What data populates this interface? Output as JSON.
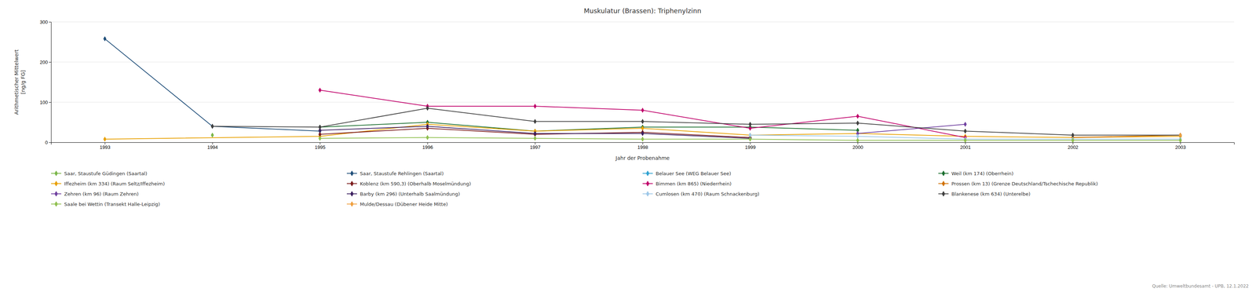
{
  "chart_data": {
    "type": "line",
    "title": "Muskulatur (Brassen): Triphenylzinn",
    "xlabel": "Jahr der Probenahme",
    "ylabel": "Arithmetischer Mittelwert\n[ng/g FG]",
    "xlim": [
      1992.5,
      2003.5
    ],
    "xticks": [
      1993,
      1994,
      1995,
      1996,
      1997,
      1998,
      1999,
      2000,
      2001,
      2002,
      2003
    ],
    "ylim": [
      0,
      300
    ],
    "yticks": [
      0,
      100,
      200,
      300
    ],
    "grid": "y",
    "legend": "bottom",
    "marker": "diamond",
    "line_style": "solid",
    "annotations": [
      "Quelle: Umweltbundesamt - UPB, 12.1.2022"
    ],
    "series": [
      {
        "name": "Saar, Staustufe Güdingen (Saartal)",
        "color": "#7ab648",
        "x": [
          1994
        ],
        "values": [
          18
        ]
      },
      {
        "name": "Saar, Staustufe Rehlingen (Saartal)",
        "color": "#1f4e79",
        "x": [
          1993,
          1994,
          1995
        ],
        "values": [
          258,
          40,
          28
        ]
      },
      {
        "name": "Belauer See (WEG Belauer See)",
        "color": "#2fa2d1",
        "x": [],
        "values": []
      },
      {
        "name": "Weil (km 174) (Oberrhein)",
        "color": "#1a6e2e",
        "x": [
          1995,
          1996,
          1997,
          1998,
          1999,
          2000
        ],
        "values": [
          38,
          50,
          28,
          38,
          38,
          30
        ]
      },
      {
        "name": "Iffezheim (km 334) (Raum Seltz/Iffezheim)",
        "color": "#e8a000",
        "x": [
          1993,
          1995,
          1996,
          1997,
          1998,
          1999,
          2000,
          2001,
          2002,
          2003
        ],
        "values": [
          8,
          15,
          45,
          28,
          35,
          18,
          22,
          15,
          12,
          15
        ]
      },
      {
        "name": "Koblenz (km 590,3) (Oberhalb Moselmündung)",
        "color": "#7b1c1c",
        "x": [
          1995,
          1996,
          1997,
          1998,
          1999
        ],
        "values": [
          20,
          35,
          20,
          25,
          12
        ]
      },
      {
        "name": "Bimmen (km 865) (Niederrhein)",
        "color": "#c0006a",
        "x": [
          1995,
          1996,
          1997,
          1998,
          1999,
          2000,
          2001
        ],
        "values": [
          130,
          90,
          90,
          80,
          35,
          65,
          12
        ]
      },
      {
        "name": "Prossen (km 13) (Grenze Deutschland/Tschechische Republik)",
        "color": "#d07000",
        "x": [
          2002,
          2003
        ],
        "values": [
          12,
          18
        ]
      },
      {
        "name": "Zehren (km 96) (Raum Zehren)",
        "color": "#7040a0",
        "x": [
          2000,
          2001
        ],
        "values": [
          22,
          45
        ]
      },
      {
        "name": "Barby (km 296) (Unterhalb Saalmündung)",
        "color": "#3c2060",
        "x": [
          1995,
          1996,
          1997,
          1998,
          1999
        ],
        "values": [
          30,
          40,
          22,
          22,
          10
        ]
      },
      {
        "name": "Cumlosen (km 470) (Raum Schnackenburg)",
        "color": "#9ec8e8",
        "x": [
          1999,
          2000,
          2001,
          2002,
          2003
        ],
        "values": [
          18,
          15,
          8,
          8,
          8
        ]
      },
      {
        "name": "Blankenese (km 634) (Unterelbe)",
        "color": "#404040",
        "x": [
          1994,
          1995,
          1996,
          1997,
          1998,
          1999,
          2000,
          2001,
          2002,
          2003
        ],
        "values": [
          40,
          38,
          85,
          52,
          52,
          45,
          48,
          28,
          18,
          18
        ]
      },
      {
        "name": "Saale bei Wettin (Transekt Halle-Leipzig)",
        "color": "#90c050",
        "x": [
          1995,
          1996,
          1997,
          1998,
          1999,
          2000,
          2001,
          2002,
          2003
        ],
        "values": [
          10,
          12,
          10,
          8,
          8,
          5,
          5,
          5,
          5
        ]
      },
      {
        "name": "Mulde/Dessau (Dübener Heide Mitte)",
        "color": "#f0a040",
        "x": [
          2003
        ],
        "values": [
          18
        ]
      }
    ]
  }
}
